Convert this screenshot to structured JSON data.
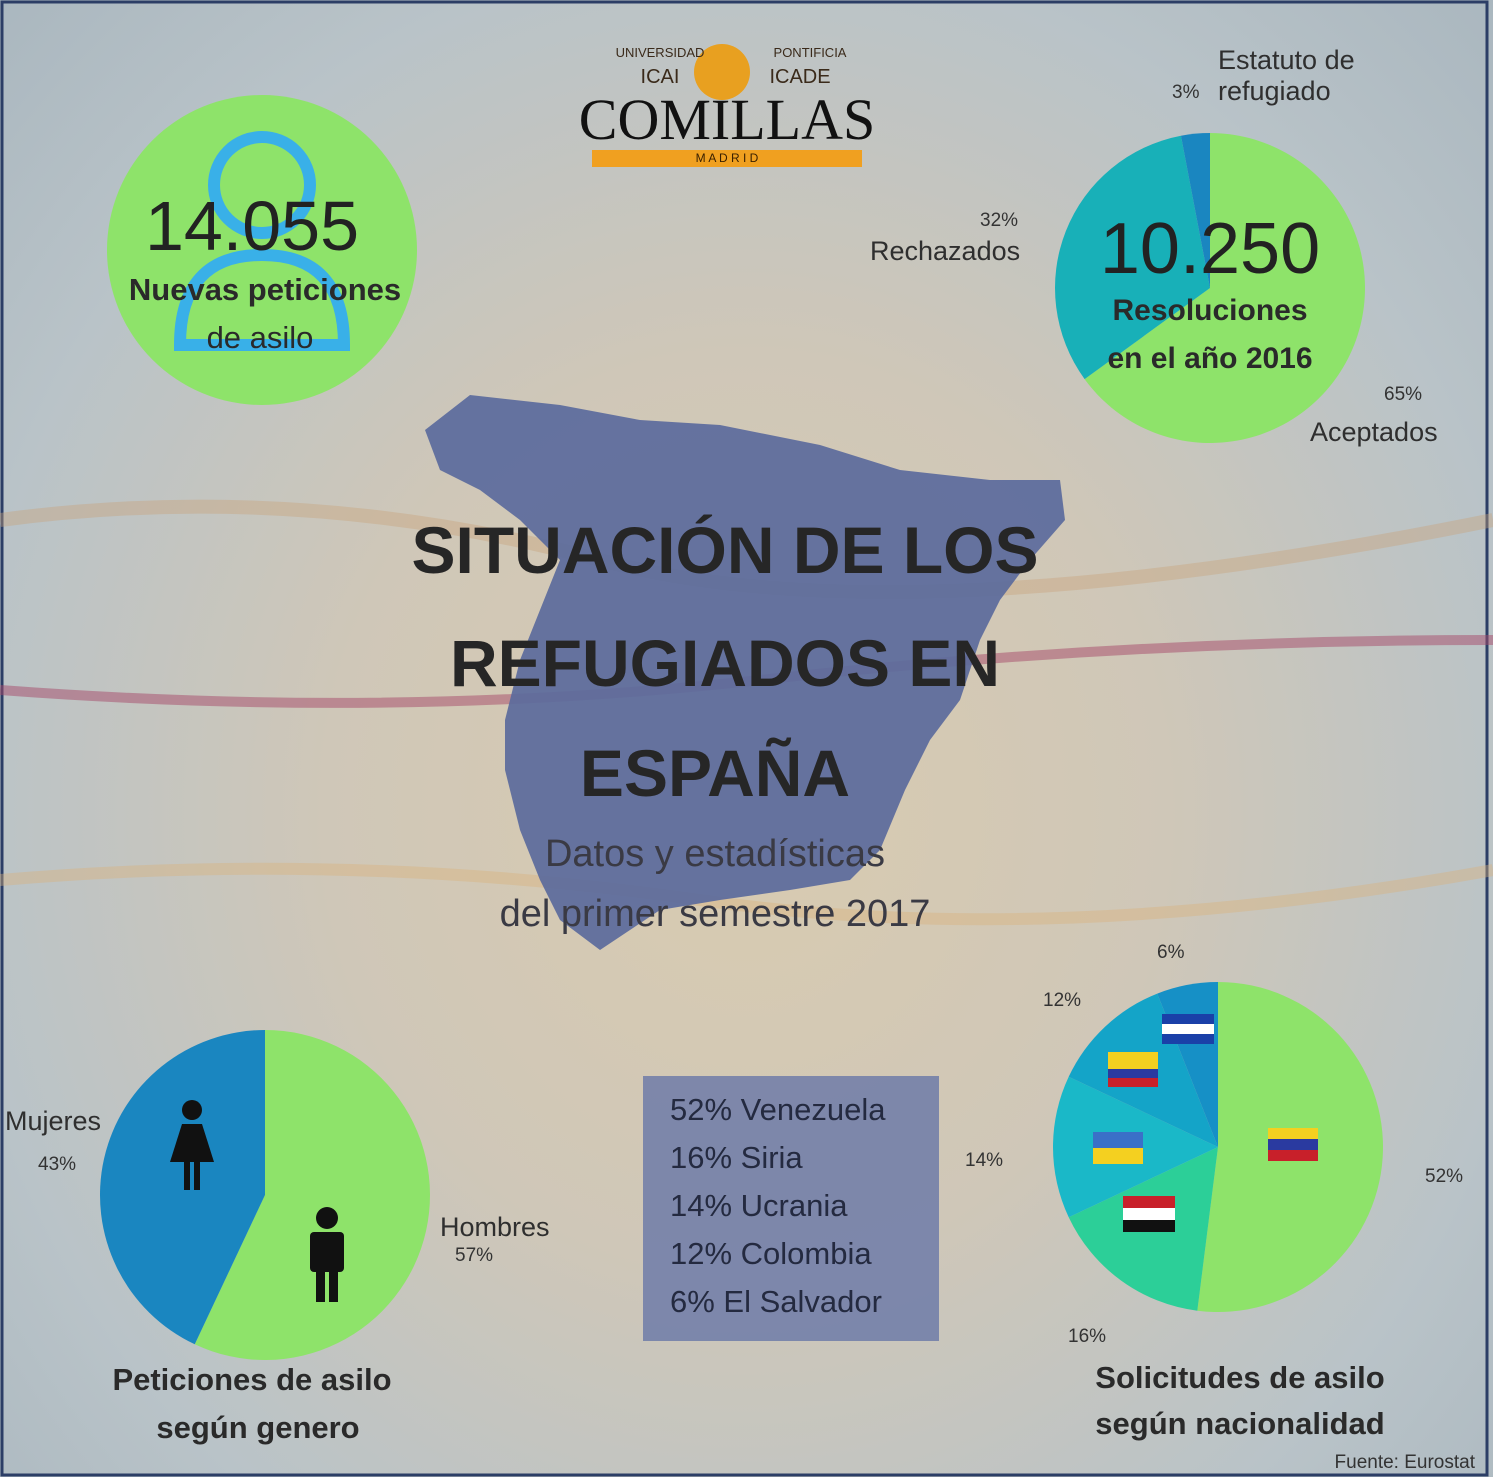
{
  "logo": {
    "arc_left": "UNIVERSIDAD",
    "arc_right": "PONTIFICIA",
    "left": "ICAI",
    "right": "ICADE",
    "name": "COMILLAS",
    "city": "M A D R I D"
  },
  "new_requests": {
    "value": "14.055",
    "label": [
      "Nuevas peticiones",
      "de asilo"
    ]
  },
  "title": [
    "SITUACIÓN DE LOS",
    "REFUGIADOS EN",
    "ESPAÑA"
  ],
  "subtitle": [
    "Datos y estadísticas",
    "del primer semestre 2017"
  ],
  "nationality_list": [
    "52% Venezuela",
    "16% Siria",
    "14% Ucrania",
    "12% Colombia",
    "6% El Salvador"
  ],
  "source": "Fuente: Eurostat",
  "chart_data": [
    {
      "type": "pie",
      "title": [
        "Peticiones de asilo",
        "según genero"
      ],
      "categories": [
        "Hombres",
        "Mujeres"
      ],
      "values": [
        57,
        43
      ],
      "value_labels": [
        "57%",
        "43%"
      ],
      "colors": [
        "#8ee36a",
        "#1a86c0"
      ]
    },
    {
      "type": "pie",
      "center_value": "10.250",
      "center_label": [
        "Resoluciones",
        "en el año 2016"
      ],
      "categories": [
        "Aceptados",
        "Rechazados",
        "Estatuto de refugiado"
      ],
      "values": [
        65,
        32,
        3
      ],
      "value_labels": [
        "65%",
        "32%",
        "3%"
      ],
      "colors": [
        "#8ee36a",
        "#18b0b8",
        "#1a86c0"
      ]
    },
    {
      "type": "pie",
      "title": [
        "Solicitudes de asilo",
        "según nacionalidad"
      ],
      "values": [
        52,
        16,
        14,
        12,
        6
      ],
      "value_labels": [
        "52%",
        "16%",
        "14%",
        "12%",
        "6%"
      ],
      "colors": [
        "#8ee36a",
        "#2ccf98",
        "#1ab8c8",
        "#14a4c8",
        "#1690c6"
      ]
    }
  ]
}
